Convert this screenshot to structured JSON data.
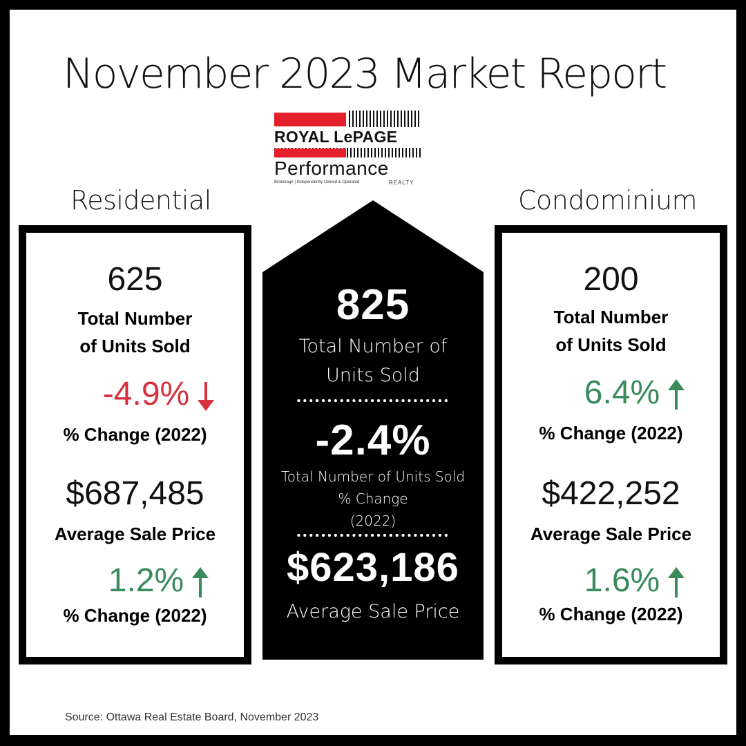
{
  "title": "November 2023 Market Report",
  "logo": {
    "line1": "ROYAL LePAGE",
    "line2": "Performance",
    "line3": "Brokerage | Independently Owned & Operated",
    "line4": "REALTY"
  },
  "residential": {
    "heading": "Residential",
    "units_sold": "625",
    "units_label_1": "Total Number",
    "units_label_2": "of Units Sold",
    "units_change": "-4.9%",
    "change_label": "% Change (2022)",
    "avg_price": "$687,485",
    "avg_price_label": "Average Sale Price",
    "price_change": "1.2%",
    "price_change_label": "% Change (2022)"
  },
  "total": {
    "units_sold": "825",
    "units_label_1": "Total Number of",
    "units_label_2": "Units Sold",
    "change": "-2.4%",
    "change_label_1": "Total Number of Units Sold",
    "change_label_2": "% Change",
    "change_label_3": "(2022)",
    "avg_price": "$623,186",
    "avg_price_label": "Average Sale Price"
  },
  "condominium": {
    "heading": "Condominium",
    "units_sold": "200",
    "units_label_1": "Total Number",
    "units_label_2": "of Units Sold",
    "units_change": "6.4%",
    "change_label": "% Change (2022)",
    "avg_price": "$422,252",
    "avg_price_label": "Average Sale Price",
    "price_change": "1.6%",
    "price_change_label": "% Change (2022)"
  },
  "source": "Source: Ottawa Real Estate Board, November 2023",
  "colors": {
    "down": "#d7303e",
    "up": "#3a8a5c",
    "brand_red": "#e4202c"
  },
  "icons": {
    "down": "arrow-down-icon",
    "up": "arrow-up-icon"
  }
}
